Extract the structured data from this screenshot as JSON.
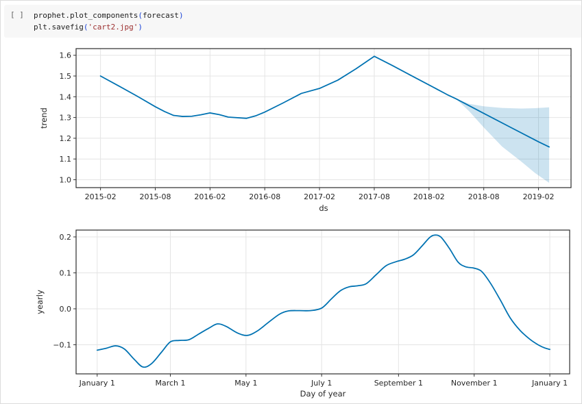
{
  "cell": {
    "execution_indicator": "[ ]",
    "code_lines": [
      {
        "segments": [
          {
            "t": "prophet.plot_components",
            "c": "code"
          },
          {
            "t": "(",
            "c": "bracket"
          },
          {
            "t": "forecast",
            "c": "code"
          },
          {
            "t": ")",
            "c": "bracket"
          }
        ]
      },
      {
        "segments": [
          {
            "t": "plt.savefig",
            "c": "code"
          },
          {
            "t": "(",
            "c": "bracket"
          },
          {
            "t": "'cart2.jpg'",
            "c": "string"
          },
          {
            "t": ")",
            "c": "bracket"
          }
        ]
      }
    ]
  },
  "colors": {
    "line": "#0072B2",
    "band_fill": "#0072B2",
    "band_opacity": 0.2,
    "grid": "#e4e4e4",
    "spine": "#2b2b2b",
    "tick": "#333333",
    "cell_bg": "#f7f7f7"
  },
  "chart_data": [
    {
      "type": "line",
      "title": "",
      "xlabel": "ds",
      "ylabel": "trend",
      "grid": true,
      "legend": "none",
      "xlim": [
        2014.86,
        2019.38
      ],
      "ylim": [
        0.962,
        1.632
      ],
      "x_ticks": [
        {
          "v": 2015.083,
          "label": "2015-02"
        },
        {
          "v": 2015.583,
          "label": "2015-08"
        },
        {
          "v": 2016.083,
          "label": "2016-02"
        },
        {
          "v": 2016.583,
          "label": "2016-08"
        },
        {
          "v": 2017.083,
          "label": "2017-02"
        },
        {
          "v": 2017.583,
          "label": "2017-08"
        },
        {
          "v": 2018.083,
          "label": "2018-02"
        },
        {
          "v": 2018.583,
          "label": "2018-08"
        },
        {
          "v": 2019.083,
          "label": "2019-02"
        }
      ],
      "y_ticks": [
        {
          "v": 1.0,
          "label": "1.0"
        },
        {
          "v": 1.1,
          "label": "1.1"
        },
        {
          "v": 1.2,
          "label": "1.2"
        },
        {
          "v": 1.3,
          "label": "1.3"
        },
        {
          "v": 1.4,
          "label": "1.4"
        },
        {
          "v": 1.5,
          "label": "1.5"
        },
        {
          "v": 1.6,
          "label": "1.6"
        }
      ],
      "series": [
        {
          "name": "trend",
          "points": [
            [
              2015.083,
              1.5
            ],
            [
              2015.25,
              1.452
            ],
            [
              2015.417,
              1.403
            ],
            [
              2015.583,
              1.352
            ],
            [
              2015.667,
              1.329
            ],
            [
              2015.75,
              1.31
            ],
            [
              2015.833,
              1.305
            ],
            [
              2015.917,
              1.306
            ],
            [
              2016.0,
              1.313
            ],
            [
              2016.083,
              1.322
            ],
            [
              2016.167,
              1.314
            ],
            [
              2016.25,
              1.302
            ],
            [
              2016.417,
              1.296
            ],
            [
              2016.5,
              1.308
            ],
            [
              2016.583,
              1.326
            ],
            [
              2016.75,
              1.37
            ],
            [
              2016.917,
              1.416
            ],
            [
              2017.083,
              1.44
            ],
            [
              2017.25,
              1.48
            ],
            [
              2017.417,
              1.535
            ],
            [
              2017.583,
              1.595
            ],
            [
              2017.75,
              1.55
            ],
            [
              2017.917,
              1.503
            ],
            [
              2018.083,
              1.457
            ],
            [
              2018.25,
              1.41
            ],
            [
              2018.33,
              1.39
            ],
            [
              2018.583,
              1.32
            ],
            [
              2018.83,
              1.252
            ],
            [
              2019.083,
              1.183
            ],
            [
              2019.18,
              1.158
            ]
          ]
        }
      ],
      "band": {
        "name": "uncertainty_interval",
        "forecast_start": 2018.33,
        "upper": [
          [
            2018.33,
            1.39
          ],
          [
            2018.45,
            1.366
          ],
          [
            2018.583,
            1.354
          ],
          [
            2018.75,
            1.346
          ],
          [
            2018.92,
            1.343
          ],
          [
            2019.05,
            1.345
          ],
          [
            2019.18,
            1.349
          ]
        ],
        "lower": [
          [
            2018.33,
            1.39
          ],
          [
            2018.45,
            1.33
          ],
          [
            2018.583,
            1.252
          ],
          [
            2018.75,
            1.16
          ],
          [
            2018.92,
            1.09
          ],
          [
            2019.05,
            1.033
          ],
          [
            2019.18,
            0.985
          ]
        ]
      }
    },
    {
      "type": "line",
      "title": "",
      "xlabel": "Day of year",
      "ylabel": "yearly",
      "grid": true,
      "legend": "none",
      "xlim": [
        -17,
        381
      ],
      "ylim": [
        -0.181,
        0.219
      ],
      "x_ticks": [
        {
          "v": 0,
          "label": "January 1"
        },
        {
          "v": 59,
          "label": "March 1"
        },
        {
          "v": 120,
          "label": "May 1"
        },
        {
          "v": 181,
          "label": "July 1"
        },
        {
          "v": 243,
          "label": "September 1"
        },
        {
          "v": 304,
          "label": "November 1"
        },
        {
          "v": 365,
          "label": "January 1"
        }
      ],
      "y_ticks": [
        {
          "v": -0.1,
          "label": "−0.1"
        },
        {
          "v": 0.0,
          "label": "0.0"
        },
        {
          "v": 0.1,
          "label": "0.1"
        },
        {
          "v": 0.2,
          "label": "0.2"
        }
      ],
      "series": [
        {
          "name": "yearly",
          "points": [
            [
              0,
              -0.115
            ],
            [
              7,
              -0.11
            ],
            [
              15,
              -0.103
            ],
            [
              22,
              -0.112
            ],
            [
              30,
              -0.141
            ],
            [
              37,
              -0.162
            ],
            [
              44,
              -0.152
            ],
            [
              52,
              -0.12
            ],
            [
              59,
              -0.092
            ],
            [
              66,
              -0.088
            ],
            [
              74,
              -0.086
            ],
            [
              82,
              -0.07
            ],
            [
              90,
              -0.054
            ],
            [
              97,
              -0.042
            ],
            [
              104,
              -0.049
            ],
            [
              113,
              -0.067
            ],
            [
              121,
              -0.074
            ],
            [
              129,
              -0.062
            ],
            [
              138,
              -0.038
            ],
            [
              147,
              -0.015
            ],
            [
              154,
              -0.006
            ],
            [
              163,
              -0.005
            ],
            [
              172,
              -0.005
            ],
            [
              181,
              0.002
            ],
            [
              189,
              0.028
            ],
            [
              196,
              0.05
            ],
            [
              203,
              0.061
            ],
            [
              210,
              0.064
            ],
            [
              217,
              0.07
            ],
            [
              225,
              0.095
            ],
            [
              233,
              0.12
            ],
            [
              241,
              0.131
            ],
            [
              248,
              0.138
            ],
            [
              255,
              0.15
            ],
            [
              262,
              0.175
            ],
            [
              268,
              0.198
            ],
            [
              272,
              0.205
            ],
            [
              277,
              0.2
            ],
            [
              284,
              0.168
            ],
            [
              291,
              0.13
            ],
            [
              297,
              0.117
            ],
            [
              304,
              0.113
            ],
            [
              310,
              0.104
            ],
            [
              317,
              0.072
            ],
            [
              325,
              0.025
            ],
            [
              333,
              -0.025
            ],
            [
              341,
              -0.06
            ],
            [
              349,
              -0.085
            ],
            [
              356,
              -0.101
            ],
            [
              361,
              -0.109
            ],
            [
              365,
              -0.113
            ]
          ]
        }
      ]
    }
  ]
}
